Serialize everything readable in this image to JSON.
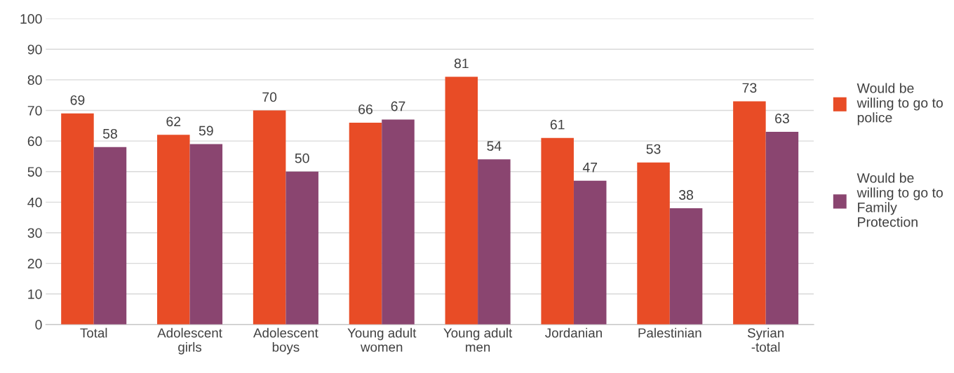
{
  "chart_data": {
    "type": "bar",
    "categories": [
      "Total",
      "Adolescent\ngirls",
      "Adolescent\nboys",
      "Young adult\nwomen",
      "Young adult\nmen",
      "Jordanian",
      "Palestinian",
      "Syrian\n-total"
    ],
    "series": [
      {
        "name": "Would be\nwilling to go to\npolice",
        "color": "#e84c26",
        "values": [
          69,
          62,
          70,
          66,
          81,
          61,
          53,
          73
        ]
      },
      {
        "name": "Would be\nwilling to go to\nFamily\nProtection",
        "color": "#8a4570",
        "values": [
          58,
          59,
          50,
          67,
          54,
          47,
          38,
          63
        ]
      }
    ],
    "ylim": [
      0,
      100
    ],
    "yticks": [
      0,
      10,
      20,
      30,
      40,
      50,
      60,
      70,
      80,
      90,
      100
    ],
    "grid": "y",
    "legend": "right",
    "data_labels": true
  }
}
